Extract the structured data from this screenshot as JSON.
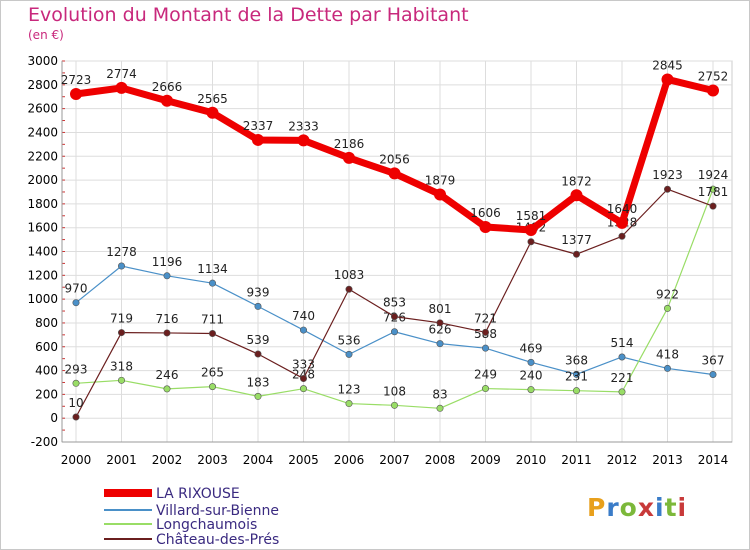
{
  "header": {
    "title": "Evolution du Montant de la Dette par Habitant",
    "subtitle": "(en €)"
  },
  "logo": {
    "text": "Proxiti",
    "colors": [
      "#e8a01c",
      "#3a7cc8",
      "#7cb83a",
      "#c83a3a"
    ]
  },
  "chart_data": {
    "type": "line",
    "title": "Evolution du Montant de la Dette par Habitant",
    "subtitle": "(en €)",
    "x": [
      2000,
      2001,
      2002,
      2003,
      2004,
      2005,
      2006,
      2007,
      2008,
      2009,
      2010,
      2011,
      2012,
      2013,
      2014
    ],
    "ylim": [
      -200,
      3000
    ],
    "yticks": [
      -200,
      0,
      200,
      400,
      600,
      800,
      1000,
      1200,
      1400,
      1600,
      1800,
      2000,
      2200,
      2400,
      2600,
      2800,
      3000
    ],
    "grid": true,
    "legend": "bottom-left",
    "series": [
      {
        "name": "LA RIXOUSE",
        "color": "#ee0000",
        "values": [
          2723,
          2774,
          2666,
          2565,
          2337,
          2333,
          2186,
          2056,
          1879,
          1606,
          1581,
          1872,
          1640,
          2845,
          2752
        ]
      },
      {
        "name": "Villard-sur-Bienne",
        "color": "#4a90c8",
        "values": [
          970,
          1278,
          1196,
          1134,
          939,
          740,
          536,
          726,
          626,
          588,
          469,
          368,
          514,
          418,
          367
        ]
      },
      {
        "name": "Longchaumois",
        "color": "#99dd66",
        "values": [
          293,
          318,
          246,
          265,
          183,
          248,
          123,
          108,
          83,
          249,
          240,
          231,
          221,
          922,
          1924
        ]
      },
      {
        "name": "Château-des-Prés",
        "color": "#6b1f1f",
        "values": [
          10,
          719,
          716,
          711,
          539,
          333,
          1083,
          853,
          801,
          721,
          1482,
          1377,
          1528,
          1923,
          1781
        ]
      }
    ]
  }
}
